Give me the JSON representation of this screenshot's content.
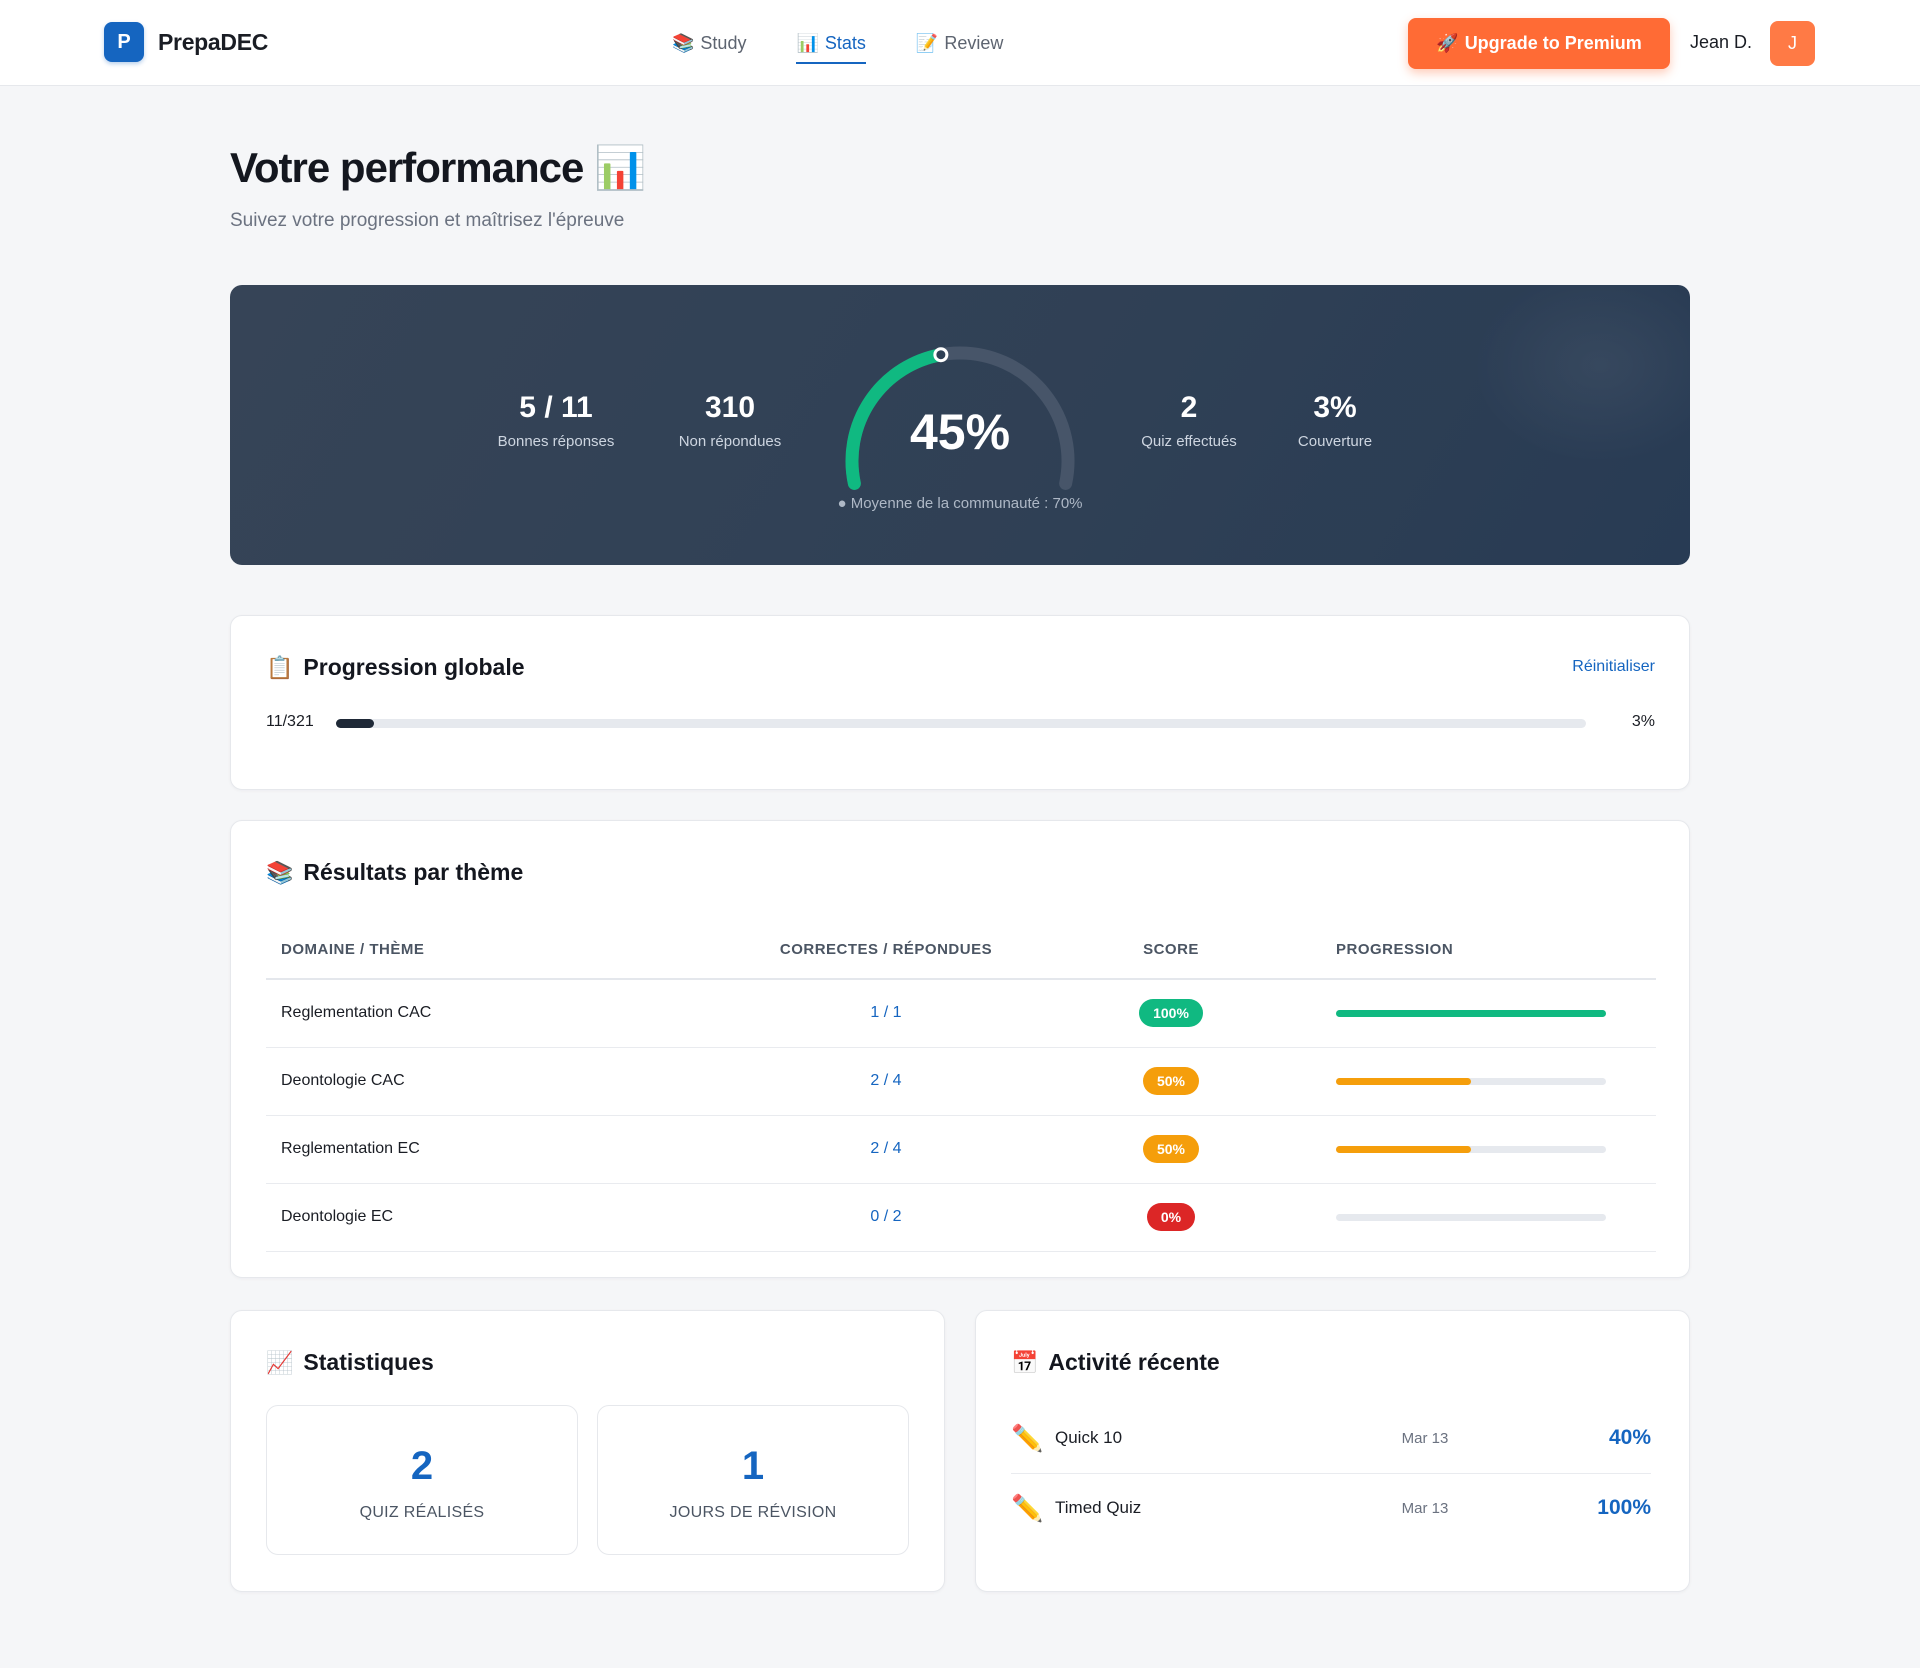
{
  "brand": {
    "logo_letter": "P",
    "name": "PrepaDEC"
  },
  "nav": {
    "items": [
      {
        "icon": "📚",
        "label": "Study"
      },
      {
        "icon": "📊",
        "label": "Stats"
      },
      {
        "icon": "📝",
        "label": "Review"
      }
    ],
    "active": "Stats",
    "upgrade_icon": "🚀",
    "upgrade_label": "Upgrade to Premium",
    "user_name": "Jean D.",
    "avatar_letter": "J"
  },
  "header": {
    "title": "Votre performance",
    "title_icon": "📊",
    "subtitle": "Suivez votre progression et maîtrisez l'épreuve"
  },
  "hero": {
    "stats_left": [
      {
        "value": "5 / 11",
        "label": "Bonnes réponses"
      },
      {
        "value": "310",
        "label": "Non répondues"
      }
    ],
    "stats_right": [
      {
        "value": "2",
        "label": "Quiz effectués"
      },
      {
        "value": "3%",
        "label": "Couverture"
      }
    ],
    "score_text": "45%",
    "score_fraction": 0.45,
    "community_text": "● Moyenne de la communauté : 70%",
    "colors": {
      "arc": "#10b981",
      "track": "#475569"
    }
  },
  "progression": {
    "icon": "📋",
    "title": "Progression globale",
    "reset_label": "Réinitialiser",
    "count": "11/321",
    "percent_text": "3%",
    "fraction": 0.03
  },
  "themes": {
    "icon": "📚",
    "title": "Résultats par thème",
    "columns": [
      "DOMAINE / THÈME",
      "CORRECTES / RÉPONDUES",
      "SCORE",
      "PROGRESSION"
    ],
    "rows": [
      {
        "name": "Reglementation CAC",
        "ratio": "1 / 1",
        "score": "100%",
        "fraction": 1.0,
        "color": "#10b981"
      },
      {
        "name": "Deontologie CAC",
        "ratio": "2 / 4",
        "score": "50%",
        "fraction": 0.5,
        "color": "#f59e0b"
      },
      {
        "name": "Reglementation EC",
        "ratio": "2 / 4",
        "score": "50%",
        "fraction": 0.5,
        "color": "#f59e0b"
      },
      {
        "name": "Deontologie EC",
        "ratio": "0 / 2",
        "score": "0%",
        "fraction": 0.0,
        "color": "#dc2626"
      }
    ]
  },
  "statistiques": {
    "icon": "📈",
    "title": "Statistiques",
    "items": [
      {
        "value": "2",
        "label": "QUIZ RÉALISÉS"
      },
      {
        "value": "1",
        "label": "JOURS DE RÉVISION"
      }
    ]
  },
  "activite": {
    "icon": "📅",
    "title": "Activité récente",
    "items": [
      {
        "icon": "✏️",
        "name": "Quick 10",
        "date": "Mar 13",
        "score": "40%"
      },
      {
        "icon": "✏️",
        "name": "Timed Quiz",
        "date": "Mar 13",
        "score": "100%"
      }
    ]
  }
}
